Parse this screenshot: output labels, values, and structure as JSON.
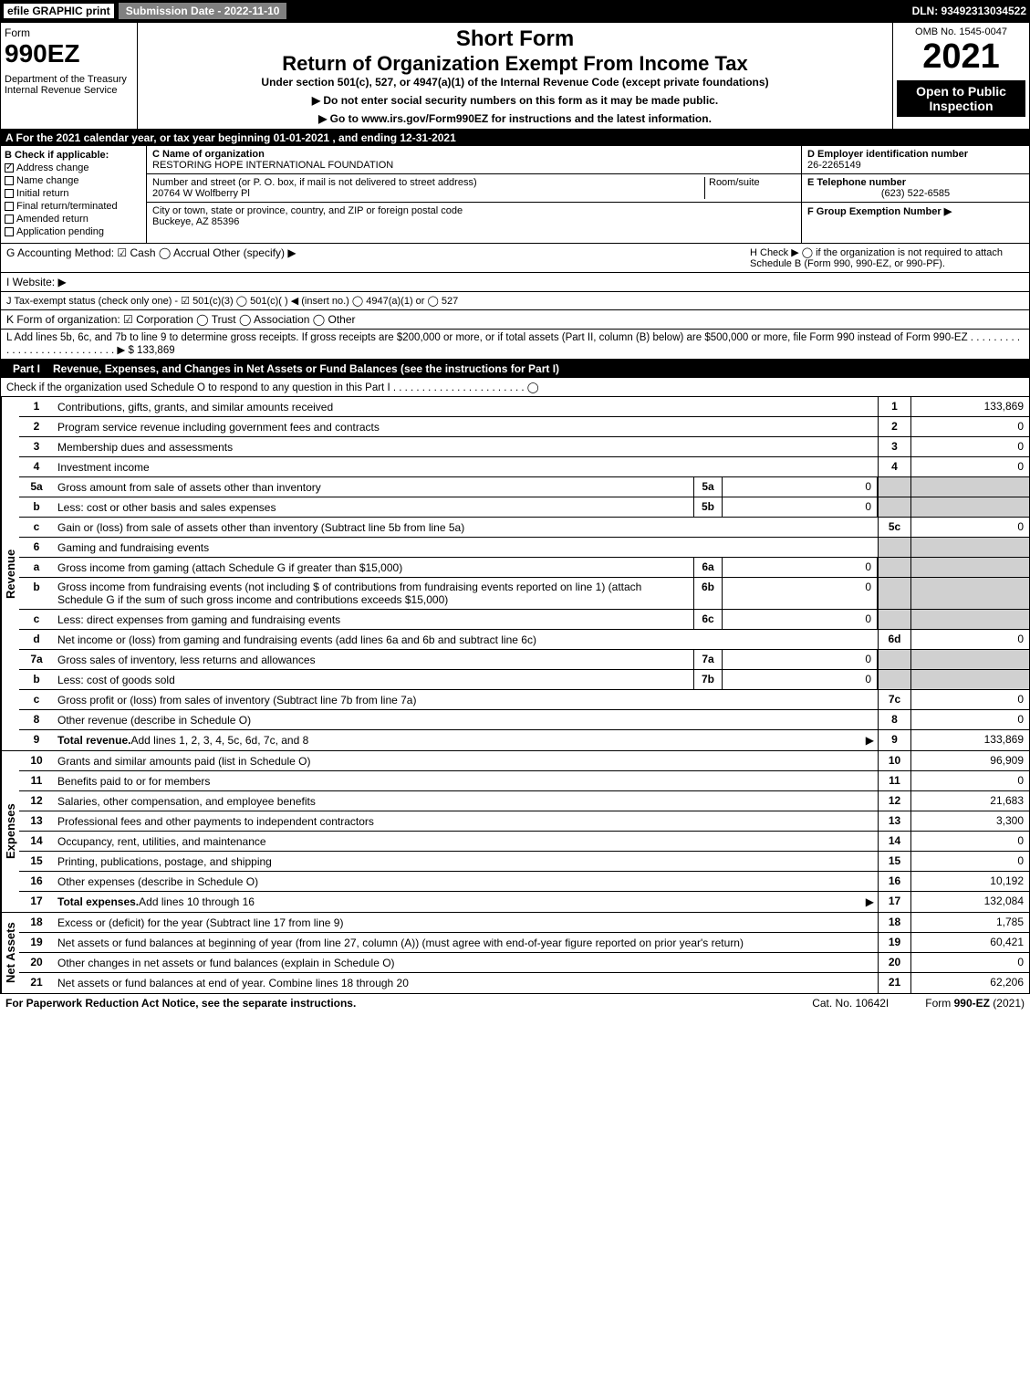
{
  "topbar": {
    "efile": "efile GRAPHIC print",
    "submission": "Submission Date - 2022-11-10",
    "dln": "DLN: 93492313034522"
  },
  "header": {
    "form_label": "Form",
    "form_number": "990EZ",
    "dept": "Department of the Treasury",
    "irs": "Internal Revenue Service",
    "short_form": "Short Form",
    "main_title": "Return of Organization Exempt From Income Tax",
    "subtitle": "Under section 501(c), 527, or 4947(a)(1) of the Internal Revenue Code (except private foundations)",
    "note1": "▶ Do not enter social security numbers on this form as it may be made public.",
    "note2": "▶ Go to www.irs.gov/Form990EZ for instructions and the latest information.",
    "omb": "OMB No. 1545-0047",
    "year": "2021",
    "inspection": "Open to Public Inspection"
  },
  "section_a": "A  For the 2021 calendar year, or tax year beginning 01-01-2021 , and ending 12-31-2021",
  "col_b": {
    "title": "B  Check if applicable:",
    "items": [
      "Address change",
      "Name change",
      "Initial return",
      "Final return/terminated",
      "Amended return",
      "Application pending"
    ],
    "checked": [
      true,
      false,
      false,
      false,
      false,
      false
    ]
  },
  "col_c": {
    "name_label": "C Name of organization",
    "name": "RESTORING HOPE INTERNATIONAL FOUNDATION",
    "street_label": "Number and street (or P. O. box, if mail is not delivered to street address)",
    "room_label": "Room/suite",
    "street": "20764 W Wolfberry Pl",
    "city_label": "City or town, state or province, country, and ZIP or foreign postal code",
    "city": "Buckeye, AZ  85396"
  },
  "col_d": {
    "ein_label": "D Employer identification number",
    "ein": "26-2265149",
    "phone_label": "E Telephone number",
    "phone": "(623) 522-6585",
    "group_label": "F Group Exemption Number  ▶"
  },
  "line_g": "G Accounting Method:   ☑ Cash  ◯ Accrual   Other (specify) ▶",
  "line_h": "H   Check ▶  ◯  if the organization is not required to attach Schedule B (Form 990, 990-EZ, or 990-PF).",
  "line_i": "I Website: ▶",
  "line_j": "J Tax-exempt status (check only one) - ☑ 501(c)(3) ◯ 501(c)(  ) ◀ (insert no.) ◯ 4947(a)(1) or ◯ 527",
  "line_k": "K Form of organization:   ☑ Corporation  ◯ Trust  ◯ Association  ◯ Other",
  "line_l": "L Add lines 5b, 6c, and 7b to line 9 to determine gross receipts. If gross receipts are $200,000 or more, or if total assets (Part II, column (B) below) are $500,000 or more, file Form 990 instead of Form 990-EZ . . . . . . . . . . . . . . . . . . . . . . . . . . . . ▶ $ 133,869",
  "part1": {
    "label": "Part I",
    "title": "Revenue, Expenses, and Changes in Net Assets or Fund Balances (see the instructions for Part I)",
    "check": "Check if the organization used Schedule O to respond to any question in this Part I . . . . . . . . . . . . . . . . . . . . . . . ◯"
  },
  "revenue_label": "Revenue",
  "expenses_label": "Expenses",
  "netassets_label": "Net Assets",
  "rows": [
    {
      "n": "1",
      "desc": "Contributions, gifts, grants, and similar amounts received",
      "rn": "1",
      "rv": "133,869"
    },
    {
      "n": "2",
      "desc": "Program service revenue including government fees and contracts",
      "rn": "2",
      "rv": "0"
    },
    {
      "n": "3",
      "desc": "Membership dues and assessments",
      "rn": "3",
      "rv": "0"
    },
    {
      "n": "4",
      "desc": "Investment income",
      "rn": "4",
      "rv": "0"
    },
    {
      "n": "5a",
      "desc": "Gross amount from sale of assets other than inventory",
      "mn": "5a",
      "mv": "0",
      "shade": true
    },
    {
      "n": "b",
      "desc": "Less: cost or other basis and sales expenses",
      "mn": "5b",
      "mv": "0",
      "shade": true
    },
    {
      "n": "c",
      "desc": "Gain or (loss) from sale of assets other than inventory (Subtract line 5b from line 5a)",
      "rn": "5c",
      "rv": "0"
    },
    {
      "n": "6",
      "desc": "Gaming and fundraising events",
      "shade": true
    },
    {
      "n": "a",
      "desc": "Gross income from gaming (attach Schedule G if greater than $15,000)",
      "mn": "6a",
      "mv": "0",
      "shade": true
    },
    {
      "n": "b",
      "desc": "Gross income from fundraising events (not including $                    of contributions from fundraising events reported on line 1) (attach Schedule G if the sum of such gross income and contributions exceeds $15,000)",
      "mn": "6b",
      "mv": "0",
      "shade": true
    },
    {
      "n": "c",
      "desc": "Less: direct expenses from gaming and fundraising events",
      "mn": "6c",
      "mv": "0",
      "shade": true
    },
    {
      "n": "d",
      "desc": "Net income or (loss) from gaming and fundraising events (add lines 6a and 6b and subtract line 6c)",
      "rn": "6d",
      "rv": "0"
    },
    {
      "n": "7a",
      "desc": "Gross sales of inventory, less returns and allowances",
      "mn": "7a",
      "mv": "0",
      "shade": true
    },
    {
      "n": "b",
      "desc": "Less: cost of goods sold",
      "mn": "7b",
      "mv": "0",
      "shade": true
    },
    {
      "n": "c",
      "desc": "Gross profit or (loss) from sales of inventory (Subtract line 7b from line 7a)",
      "rn": "7c",
      "rv": "0"
    },
    {
      "n": "8",
      "desc": "Other revenue (describe in Schedule O)",
      "rn": "8",
      "rv": "0"
    },
    {
      "n": "9",
      "desc": "Total revenue. Add lines 1, 2, 3, 4, 5c, 6d, 7c, and 8",
      "rn": "9",
      "rv": "133,869",
      "bold": true,
      "arrow": true
    }
  ],
  "exp_rows": [
    {
      "n": "10",
      "desc": "Grants and similar amounts paid (list in Schedule O)",
      "rn": "10",
      "rv": "96,909"
    },
    {
      "n": "11",
      "desc": "Benefits paid to or for members",
      "rn": "11",
      "rv": "0"
    },
    {
      "n": "12",
      "desc": "Salaries, other compensation, and employee benefits",
      "rn": "12",
      "rv": "21,683"
    },
    {
      "n": "13",
      "desc": "Professional fees and other payments to independent contractors",
      "rn": "13",
      "rv": "3,300"
    },
    {
      "n": "14",
      "desc": "Occupancy, rent, utilities, and maintenance",
      "rn": "14",
      "rv": "0"
    },
    {
      "n": "15",
      "desc": "Printing, publications, postage, and shipping",
      "rn": "15",
      "rv": "0"
    },
    {
      "n": "16",
      "desc": "Other expenses (describe in Schedule O)",
      "rn": "16",
      "rv": "10,192"
    },
    {
      "n": "17",
      "desc": "Total expenses. Add lines 10 through 16",
      "rn": "17",
      "rv": "132,084",
      "bold": true,
      "arrow": true
    }
  ],
  "net_rows": [
    {
      "n": "18",
      "desc": "Excess or (deficit) for the year (Subtract line 17 from line 9)",
      "rn": "18",
      "rv": "1,785"
    },
    {
      "n": "19",
      "desc": "Net assets or fund balances at beginning of year (from line 27, column (A)) (must agree with end-of-year figure reported on prior year's return)",
      "rn": "19",
      "rv": "60,421"
    },
    {
      "n": "20",
      "desc": "Other changes in net assets or fund balances (explain in Schedule O)",
      "rn": "20",
      "rv": "0"
    },
    {
      "n": "21",
      "desc": "Net assets or fund balances at end of year. Combine lines 18 through 20",
      "rn": "21",
      "rv": "62,206"
    }
  ],
  "footer": {
    "left": "For Paperwork Reduction Act Notice, see the separate instructions.",
    "mid": "Cat. No. 10642I",
    "right_prefix": "Form ",
    "right_form": "990-EZ",
    "right_suffix": " (2021)"
  }
}
